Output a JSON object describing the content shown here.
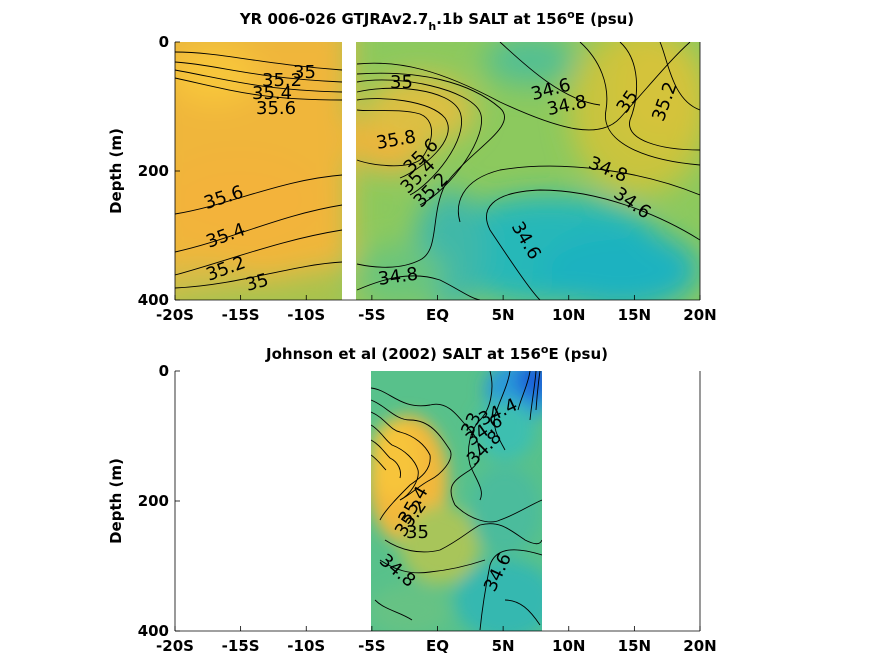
{
  "chart_data": [
    {
      "type": "heatmap",
      "title_pre": "YR 006-026 GTJRAv2.7",
      "title_sub": "h",
      "title_post": ".1b SALT at 156",
      "title_sup": "o",
      "title_end": "E (psu)",
      "ylabel": "Depth (m)",
      "xlim": [
        -20,
        20
      ],
      "ylim": [
        0,
        400
      ],
      "yreversed": true,
      "xticks": [
        {
          "v": -20,
          "label": "-20S"
        },
        {
          "v": -15,
          "label": "-15S"
        },
        {
          "v": -10,
          "label": "-10S"
        },
        {
          "v": -5,
          "label": "-5S"
        },
        {
          "v": 0,
          "label": "EQ"
        },
        {
          "v": 5,
          "label": "5N"
        },
        {
          "v": 10,
          "label": "10N"
        },
        {
          "v": 15,
          "label": "15N"
        },
        {
          "v": 20,
          "label": "20N"
        }
      ],
      "yticks": [
        {
          "v": 0,
          "label": "0"
        },
        {
          "v": 200,
          "label": "200"
        },
        {
          "v": 400,
          "label": "400"
        }
      ],
      "data_gap_lat": [
        -7.6,
        -6.8
      ],
      "contour_labels": [
        {
          "lat": -12.5,
          "depth": 50,
          "text": "35"
        },
        {
          "lat": -14.8,
          "depth": 58,
          "text": "35.2"
        },
        {
          "lat": -15.0,
          "depth": 80,
          "text": "35.4"
        },
        {
          "lat": -14.8,
          "depth": 103,
          "text": "35.6"
        },
        {
          "lat": -17.0,
          "depth": 230,
          "text": "35.6"
        },
        {
          "lat": -17.0,
          "depth": 292,
          "text": "35.4"
        },
        {
          "lat": -17.0,
          "depth": 348,
          "text": "35.2"
        },
        {
          "lat": -15.6,
          "depth": 390,
          "text": "35"
        },
        {
          "lat": -3.5,
          "depth": 65,
          "text": "35"
        },
        {
          "lat": 7.5,
          "depth": 72,
          "text": "34.6"
        },
        {
          "lat": 7.8,
          "depth": 100,
          "text": "34.8"
        },
        {
          "lat": 14.0,
          "depth": 90,
          "text": "35"
        },
        {
          "lat": 17.8,
          "depth": 95,
          "text": "35.2"
        },
        {
          "lat": -3.5,
          "depth": 155,
          "text": "35.8"
        },
        {
          "lat": -1.2,
          "depth": 178,
          "text": "35.6"
        },
        {
          "lat": -1.8,
          "depth": 207,
          "text": "35.4"
        },
        {
          "lat": -2.2,
          "depth": 232,
          "text": "35.2"
        },
        {
          "lat": 13.2,
          "depth": 210,
          "text": "34.8"
        },
        {
          "lat": 15.8,
          "depth": 268,
          "text": "34.6"
        },
        {
          "lat": 7.0,
          "depth": 325,
          "text": "34.6"
        },
        {
          "lat": -3.0,
          "depth": 360,
          "text": "34.8"
        }
      ]
    },
    {
      "type": "heatmap",
      "title_pre": "Johnson et al (2002) SALT at 156",
      "title_sub": "",
      "title_post": "",
      "title_sup": "o",
      "title_end": "E (psu)",
      "ylabel": "Depth (m)",
      "xlim": [
        -20,
        20
      ],
      "ylim": [
        0,
        400
      ],
      "yreversed": true,
      "xticks": [
        {
          "v": -20,
          "label": "-20S"
        },
        {
          "v": -15,
          "label": "-15S"
        },
        {
          "v": -10,
          "label": "-10S"
        },
        {
          "v": -5,
          "label": "-5S"
        },
        {
          "v": 0,
          "label": "EQ"
        },
        {
          "v": 5,
          "label": "5N"
        },
        {
          "v": 10,
          "label": "10N"
        },
        {
          "v": 15,
          "label": "15N"
        },
        {
          "v": 20,
          "label": "20N"
        }
      ],
      "yticks": [
        {
          "v": 0,
          "label": "0"
        },
        {
          "v": 200,
          "label": "200"
        },
        {
          "v": 400,
          "label": "400"
        }
      ],
      "data_lat_range": [
        -5,
        8
      ],
      "contour_labels": [
        {
          "lat": 2.8,
          "depth": 75,
          "text": "33"
        },
        {
          "lat": 5.5,
          "depth": 65,
          "text": "34.4"
        },
        {
          "lat": 4.6,
          "depth": 92,
          "text": "34.6"
        },
        {
          "lat": 4.2,
          "depth": 115,
          "text": "34.8"
        },
        {
          "lat": -2.2,
          "depth": 260,
          "text": "35.4"
        },
        {
          "lat": -2.3,
          "depth": 285,
          "text": "35.2"
        },
        {
          "lat": -1.3,
          "depth": 310,
          "text": "35"
        },
        {
          "lat": -3.0,
          "depth": 365,
          "text": "34.8"
        },
        {
          "lat": 4.8,
          "depth": 350,
          "text": "34.6"
        }
      ]
    }
  ]
}
